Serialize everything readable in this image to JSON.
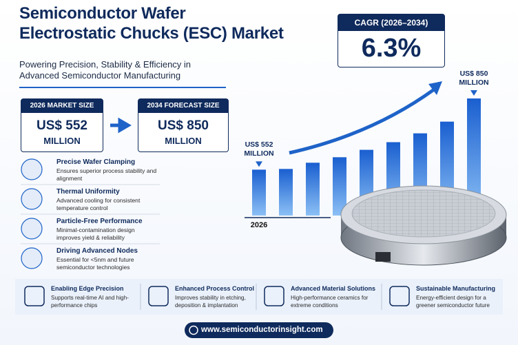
{
  "header": {
    "title": [
      "Semiconductor Wafer",
      "Electrostatic Chucks (ESC) Market"
    ],
    "subtitle": [
      "Powering Precision, Stability & Efficiency in",
      "Advanced Semiconductor Manufacturing"
    ]
  },
  "cagr": {
    "label": "CAGR (2026–2034)",
    "value": "6.3%"
  },
  "market": {
    "label": "2026 MARKET SIZE",
    "value": "US$ 552",
    "unit": "MILLION"
  },
  "forecast": {
    "label": "2034 FORECAST SIZE",
    "value": "US$ 850",
    "unit": "MILLION"
  },
  "features": [
    {
      "title": "Precise Wafer Clamping",
      "desc": "Ensures superior process stability and alignment"
    },
    {
      "title": "Thermal Uniformity",
      "desc": "Advanced cooling for consistent temperature control"
    },
    {
      "title": "Particle-Free Performance",
      "desc": "Minimal-contamination design improves yield & reliability"
    },
    {
      "title": "Driving Advanced Nodes",
      "desc": "Essential for <5nm and future semiconductor technologies"
    }
  ],
  "chart_data": {
    "type": "bar",
    "categories": [
      "2026",
      null,
      null,
      null,
      null,
      null,
      null,
      null,
      null
    ],
    "values": [
      552,
      555,
      581,
      604,
      635,
      667,
      704,
      753,
      850
    ],
    "value_labels": [
      "US$ 552 MILLION",
      null,
      null,
      null,
      null,
      null,
      null,
      null,
      "US$ 850 MILLION"
    ],
    "ylim": [
      360,
      860
    ],
    "color": "#2f80e0"
  },
  "benefits": [
    {
      "title": "Enabling Edge Precision",
      "desc": "Supports real-time AI and high-performance chips"
    },
    {
      "title": "Enhanced Process Control",
      "desc": "Improves stability in etching, deposition & implantation"
    },
    {
      "title": "Advanced Material Solutions",
      "desc": "High-performance ceramics for extreme conditions"
    },
    {
      "title": "Sustainable Manufacturing",
      "desc": "Energy-efficient design for a greener semiconductor future"
    }
  ],
  "url": "www.semiconductorinsight.com"
}
